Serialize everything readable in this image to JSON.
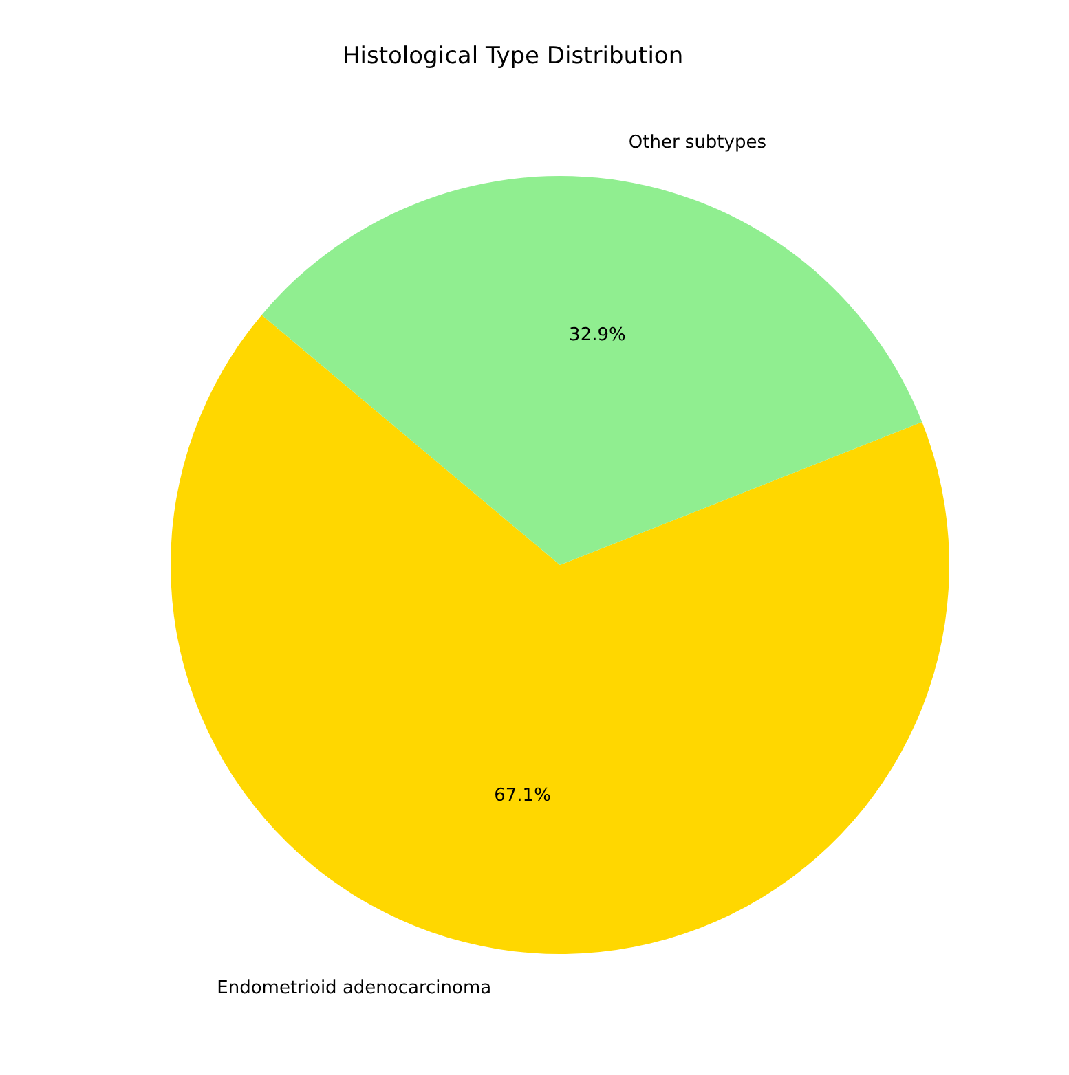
{
  "chart_data": {
    "type": "pie",
    "title": "Histological Type Distribution",
    "categories": [
      "Endometrioid adenocarcinoma",
      "Other subtypes"
    ],
    "values": [
      67.1,
      32.9
    ],
    "colors": [
      "#ffd700",
      "#90ee90"
    ],
    "value_labels": [
      "67.1%",
      "32.9%"
    ]
  }
}
